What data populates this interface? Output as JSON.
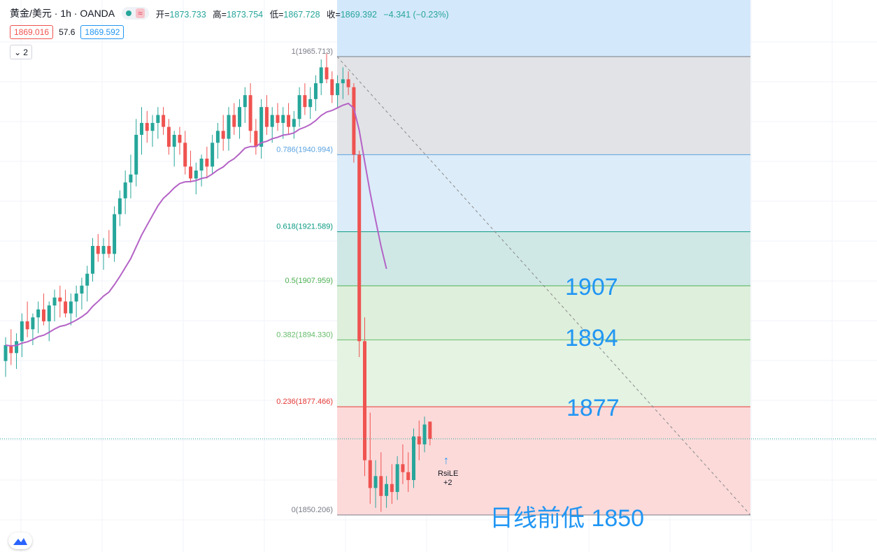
{
  "header": {
    "symbol": "黄金/美元 · 1h · OANDA",
    "approx_icon": "≈",
    "open_label": "开=",
    "open": "1873.733",
    "high_label": "高=",
    "high": "1873.754",
    "low_label": "低=",
    "low": "1867.728",
    "close_label": "收=",
    "close": "1869.392",
    "change": "−4.341 (−0.23%)",
    "bid": "1869.016",
    "spread": "57.6",
    "ask": "1869.592",
    "indicator_count": "2"
  },
  "icons": {
    "status_dot": "green-dot-icon",
    "collapse": "chevron-down-icon",
    "logo": "tradingview-logo-icon",
    "signal": "arrow-up-icon"
  },
  "colors": {
    "up": "#26a69a",
    "down": "#ef5350",
    "ma": "#b463c6",
    "annotation": "#2196f3"
  },
  "fib": {
    "levels": [
      {
        "label": "1(1965.713)",
        "price": 1965.713,
        "color": "#787b86"
      },
      {
        "label": "0.786(1940.994)",
        "price": 1940.994,
        "color": "#5ba3e0"
      },
      {
        "label": "0.618(1921.589)",
        "price": 1921.589,
        "color": "#089981"
      },
      {
        "label": "0.5(1907.959)",
        "price": 1907.959,
        "color": "#4caf50"
      },
      {
        "label": "0.382(1894.330)",
        "price": 1894.33,
        "color": "#66bb6a"
      },
      {
        "label": "0.236(1877.466)",
        "price": 1877.466,
        "color": "#e53935"
      },
      {
        "label": "0(1850.206)",
        "price": 1850.206,
        "color": "#787b86"
      }
    ],
    "zones": [
      {
        "from": 1965.713,
        "to": 1940.994,
        "color": "#e2e3e6"
      },
      {
        "from": 1940.994,
        "to": 1921.589,
        "color": "#dcecf9"
      },
      {
        "from": 1921.589,
        "to": 1907.959,
        "color": "#cfe8e6"
      },
      {
        "from": 1907.959,
        "to": 1894.33,
        "color": "#deefdc"
      },
      {
        "from": 1894.33,
        "to": 1877.466,
        "color": "#e4f3e2"
      },
      {
        "from": 1877.466,
        "to": 1850.206,
        "color": "#fcdada"
      }
    ]
  },
  "annotations": {
    "level_1907": "1907",
    "level_1894": "1894",
    "level_1877": "1877",
    "prior_low": "日线前低 1850"
  },
  "signal": {
    "name": "RsiLE",
    "qty": "+2"
  },
  "chart_data": {
    "type": "candlestick",
    "symbol": "XAU/USD",
    "timeframe": "1h",
    "ylim": [
      1848,
      2006
    ],
    "candles": [
      [
        1889,
        1895,
        1885,
        1893
      ],
      [
        1893,
        1897,
        1888,
        1891
      ],
      [
        1891,
        1896,
        1887,
        1894
      ],
      [
        1894,
        1901,
        1890,
        1899
      ],
      [
        1899,
        1904,
        1895,
        1897
      ],
      [
        1897,
        1901,
        1893,
        1900
      ],
      [
        1900,
        1904,
        1896,
        1902
      ],
      [
        1902,
        1906,
        1898,
        1899
      ],
      [
        1899,
        1904,
        1894,
        1903
      ],
      [
        1903,
        1907,
        1899,
        1905
      ],
      [
        1905,
        1908,
        1900,
        1904
      ],
      [
        1904,
        1907,
        1900,
        1901
      ],
      [
        1901,
        1906,
        1898,
        1904
      ],
      [
        1904,
        1908,
        1900,
        1906
      ],
      [
        1906,
        1910,
        1902,
        1908
      ],
      [
        1908,
        1913,
        1904,
        1911
      ],
      [
        1911,
        1920,
        1909,
        1918
      ],
      [
        1918,
        1921,
        1914,
        1916
      ],
      [
        1916,
        1920,
        1912,
        1918
      ],
      [
        1918,
        1922,
        1915,
        1916
      ],
      [
        1916,
        1928,
        1914,
        1926
      ],
      [
        1926,
        1932,
        1923,
        1930
      ],
      [
        1930,
        1937,
        1926,
        1934
      ],
      [
        1934,
        1941,
        1930,
        1936
      ],
      [
        1936,
        1950,
        1933,
        1946
      ],
      [
        1946,
        1953,
        1941,
        1949
      ],
      [
        1949,
        1952,
        1944,
        1947
      ],
      [
        1947,
        1951,
        1943,
        1949
      ],
      [
        1949,
        1953,
        1945,
        1951
      ],
      [
        1951,
        1953,
        1946,
        1948
      ],
      [
        1948,
        1950,
        1941,
        1943
      ],
      [
        1943,
        1947,
        1938,
        1946
      ],
      [
        1946,
        1948,
        1941,
        1944
      ],
      [
        1944,
        1947,
        1936,
        1938
      ],
      [
        1938,
        1942,
        1934,
        1935
      ],
      [
        1935,
        1939,
        1931,
        1937
      ],
      [
        1937,
        1941,
        1933,
        1940
      ],
      [
        1940,
        1943,
        1935,
        1938
      ],
      [
        1938,
        1946,
        1936,
        1944
      ],
      [
        1944,
        1949,
        1940,
        1947
      ],
      [
        1947,
        1951,
        1942,
        1945
      ],
      [
        1945,
        1953,
        1942,
        1951
      ],
      [
        1951,
        1954,
        1946,
        1948
      ],
      [
        1948,
        1955,
        1945,
        1953
      ],
      [
        1953,
        1958,
        1949,
        1956
      ],
      [
        1956,
        1959,
        1944,
        1947
      ],
      [
        1947,
        1950,
        1941,
        1943
      ],
      [
        1943,
        1955,
        1940,
        1953
      ],
      [
        1953,
        1956,
        1946,
        1948
      ],
      [
        1948,
        1953,
        1944,
        1951
      ],
      [
        1951,
        1954,
        1947,
        1949
      ],
      [
        1949,
        1953,
        1945,
        1951
      ],
      [
        1951,
        1954,
        1946,
        1948
      ],
      [
        1948,
        1952,
        1945,
        1950
      ],
      [
        1950,
        1958,
        1948,
        1956
      ],
      [
        1956,
        1959,
        1951,
        1953
      ],
      [
        1953,
        1958,
        1950,
        1955
      ],
      [
        1955,
        1961,
        1952,
        1959
      ],
      [
        1959,
        1965,
        1956,
        1963
      ],
      [
        1963,
        1966.5,
        1959,
        1960
      ],
      [
        1960,
        1962,
        1954,
        1956
      ],
      [
        1956,
        1961,
        1953,
        1959
      ],
      [
        1959,
        1963,
        1955,
        1960
      ],
      [
        1960,
        1962,
        1956,
        1958
      ],
      [
        1958,
        1959,
        1939,
        1941
      ],
      [
        1941,
        1942,
        1890,
        1894
      ],
      [
        1894,
        1900,
        1860,
        1864
      ],
      [
        1864,
        1876,
        1853,
        1857
      ],
      [
        1857,
        1864,
        1852,
        1860
      ],
      [
        1860,
        1866,
        1851,
        1855
      ],
      [
        1855,
        1860,
        1852,
        1858
      ],
      [
        1858,
        1863,
        1853,
        1856
      ],
      [
        1856,
        1865,
        1854,
        1863
      ],
      [
        1863,
        1868,
        1858,
        1861
      ],
      [
        1861,
        1866,
        1856,
        1859
      ],
      [
        1859,
        1872,
        1857,
        1870
      ],
      [
        1870,
        1874,
        1864,
        1868
      ],
      [
        1868,
        1875,
        1866,
        1873
      ],
      [
        1873.733,
        1873.754,
        1867.728,
        1869.392
      ]
    ],
    "ma_visible": true,
    "fib_retracement": {
      "high": 1965.713,
      "low": 1850.206
    },
    "current_price": 1869.392
  }
}
